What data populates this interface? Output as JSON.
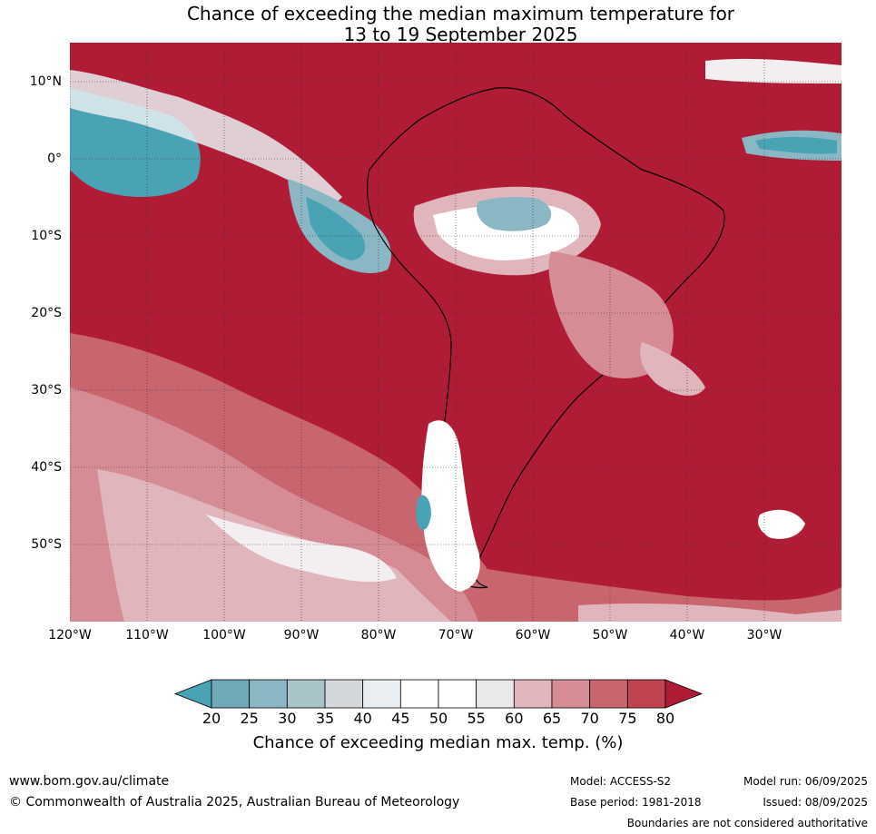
{
  "title_line1": "Chance of exceeding the median maximum temperature for",
  "title_line2": "13 to 19 September 2025",
  "lat_labels": [
    "10°N",
    "0°",
    "10°S",
    "20°S",
    "30°S",
    "40°S",
    "50°S"
  ],
  "lon_labels": [
    "120°W",
    "110°W",
    "100°W",
    "90°W",
    "80°W",
    "70°W",
    "60°W",
    "50°W",
    "40°W",
    "30°W"
  ],
  "colorbar": {
    "ticks": [
      "20",
      "25",
      "30",
      "35",
      "40",
      "45",
      "50",
      "55",
      "60",
      "65",
      "70",
      "75",
      "80"
    ],
    "colors": [
      "#4aa3b5",
      "#6fa9b7",
      "#8bb6c4",
      "#a9c4c9",
      "#d3d7da",
      "#e8eef1",
      "#ffffff",
      "#ffffff",
      "#ebe8e9",
      "#e0b5bb",
      "#d58c95",
      "#c8656f",
      "#c0434f",
      "#b01c36"
    ],
    "label": "Chance of exceeding median max. temp. (%)"
  },
  "map_colors": {
    "high": "#b01c36",
    "mid_high": "#c8656f",
    "mid": "#e0b5bb",
    "neutral": "#ffffff",
    "low": "#4aa3b5",
    "low_mid": "#8bb6c4"
  },
  "footer": {
    "website": "www.bom.gov.au/climate",
    "copyright": "© Commonwealth of Australia 2025, Australian Bureau of Meteorology",
    "model": "Model: ACCESS-S2",
    "base_period": "Base period: 1981-2018",
    "model_run": "Model run: 06/09/2025",
    "issued": "Issued: 08/09/2025",
    "disclaimer": "Boundaries are not considered authoritative"
  }
}
